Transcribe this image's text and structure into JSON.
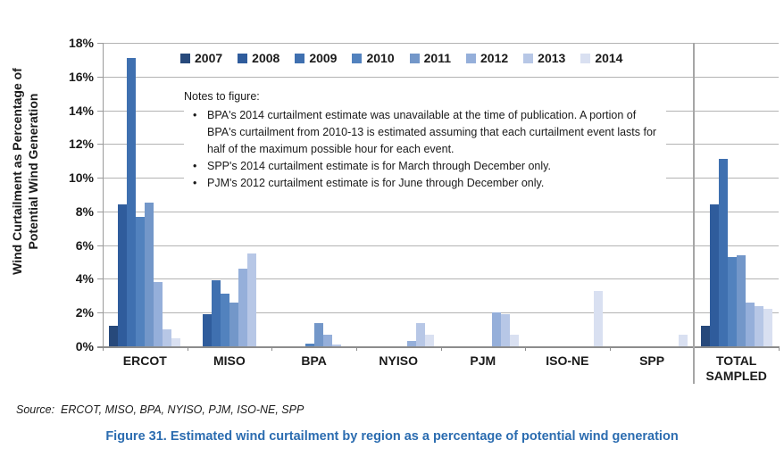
{
  "figure": {
    "caption": "Figure 31. Estimated wind curtailment by region as a percentage of potential wind generation",
    "source_line": "Source:  ERCOT, MISO, BPA, NYISO, PJM, ISO-NE, SPP",
    "caption_color": "#2b6cb0"
  },
  "notes": {
    "title": "Notes to figure:",
    "bullet_glyph": "•",
    "bullets": [
      "BPA's 2014 curtailment estimate was unavailable at the time of publication. A portion of BPA's curtailment from 2010-13 is estimated assuming that each curtailment event lasts for half of the maximum possible hour for each event.",
      "SPP's 2014 curtailment estimate is for March through December only.",
      "PJM's 2012 curtailment estimate is for June through December only."
    ]
  },
  "chart_data": {
    "type": "bar",
    "title": "Figure 31. Estimated wind curtailment by region as a percentage of potential wind generation",
    "ylabel": "Wind Curtailment as Percentage of Potential Wind Generation",
    "xlabel": "",
    "ylim": [
      0,
      18
    ],
    "grid": true,
    "legend_position": "top",
    "ytick_values": [
      0,
      2,
      4,
      6,
      8,
      10,
      12,
      14,
      16,
      18
    ],
    "ytick_labels": [
      "0%",
      "2%",
      "4%",
      "6%",
      "8%",
      "10%",
      "12%",
      "14%",
      "16%",
      "18%"
    ],
    "categories": [
      "ERCOT",
      "MISO",
      "BPA",
      "NYISO",
      "PJM",
      "ISO-NE",
      "SPP",
      "TOTAL SAMPLED"
    ],
    "series": [
      {
        "name": "2007",
        "color": "#27497B",
        "values": [
          1.2,
          null,
          null,
          null,
          null,
          null,
          null,
          1.2
        ]
      },
      {
        "name": "2008",
        "color": "#2F5C9C",
        "values": [
          8.4,
          1.9,
          null,
          null,
          null,
          null,
          null,
          8.4
        ]
      },
      {
        "name": "2009",
        "color": "#3F70B0",
        "values": [
          17.1,
          3.9,
          null,
          null,
          null,
          null,
          null,
          11.1
        ]
      },
      {
        "name": "2010",
        "color": "#5282BE",
        "values": [
          7.7,
          3.1,
          0.15,
          null,
          null,
          null,
          null,
          5.3
        ]
      },
      {
        "name": "2011",
        "color": "#7397C9",
        "values": [
          8.5,
          2.6,
          1.4,
          null,
          null,
          null,
          null,
          5.4
        ]
      },
      {
        "name": "2012",
        "color": "#95AFDA",
        "values": [
          3.8,
          4.6,
          0.7,
          0.3,
          2.0,
          null,
          null,
          2.6
        ]
      },
      {
        "name": "2013",
        "color": "#B7C7E6",
        "values": [
          1.0,
          5.5,
          0.1,
          1.4,
          1.9,
          null,
          null,
          2.4
        ]
      },
      {
        "name": "2014",
        "color": "#D9E0F1",
        "values": [
          0.5,
          null,
          null,
          0.7,
          0.7,
          3.3,
          0.7,
          2.2
        ]
      }
    ],
    "separator_before_category": "TOTAL SAMPLED"
  }
}
